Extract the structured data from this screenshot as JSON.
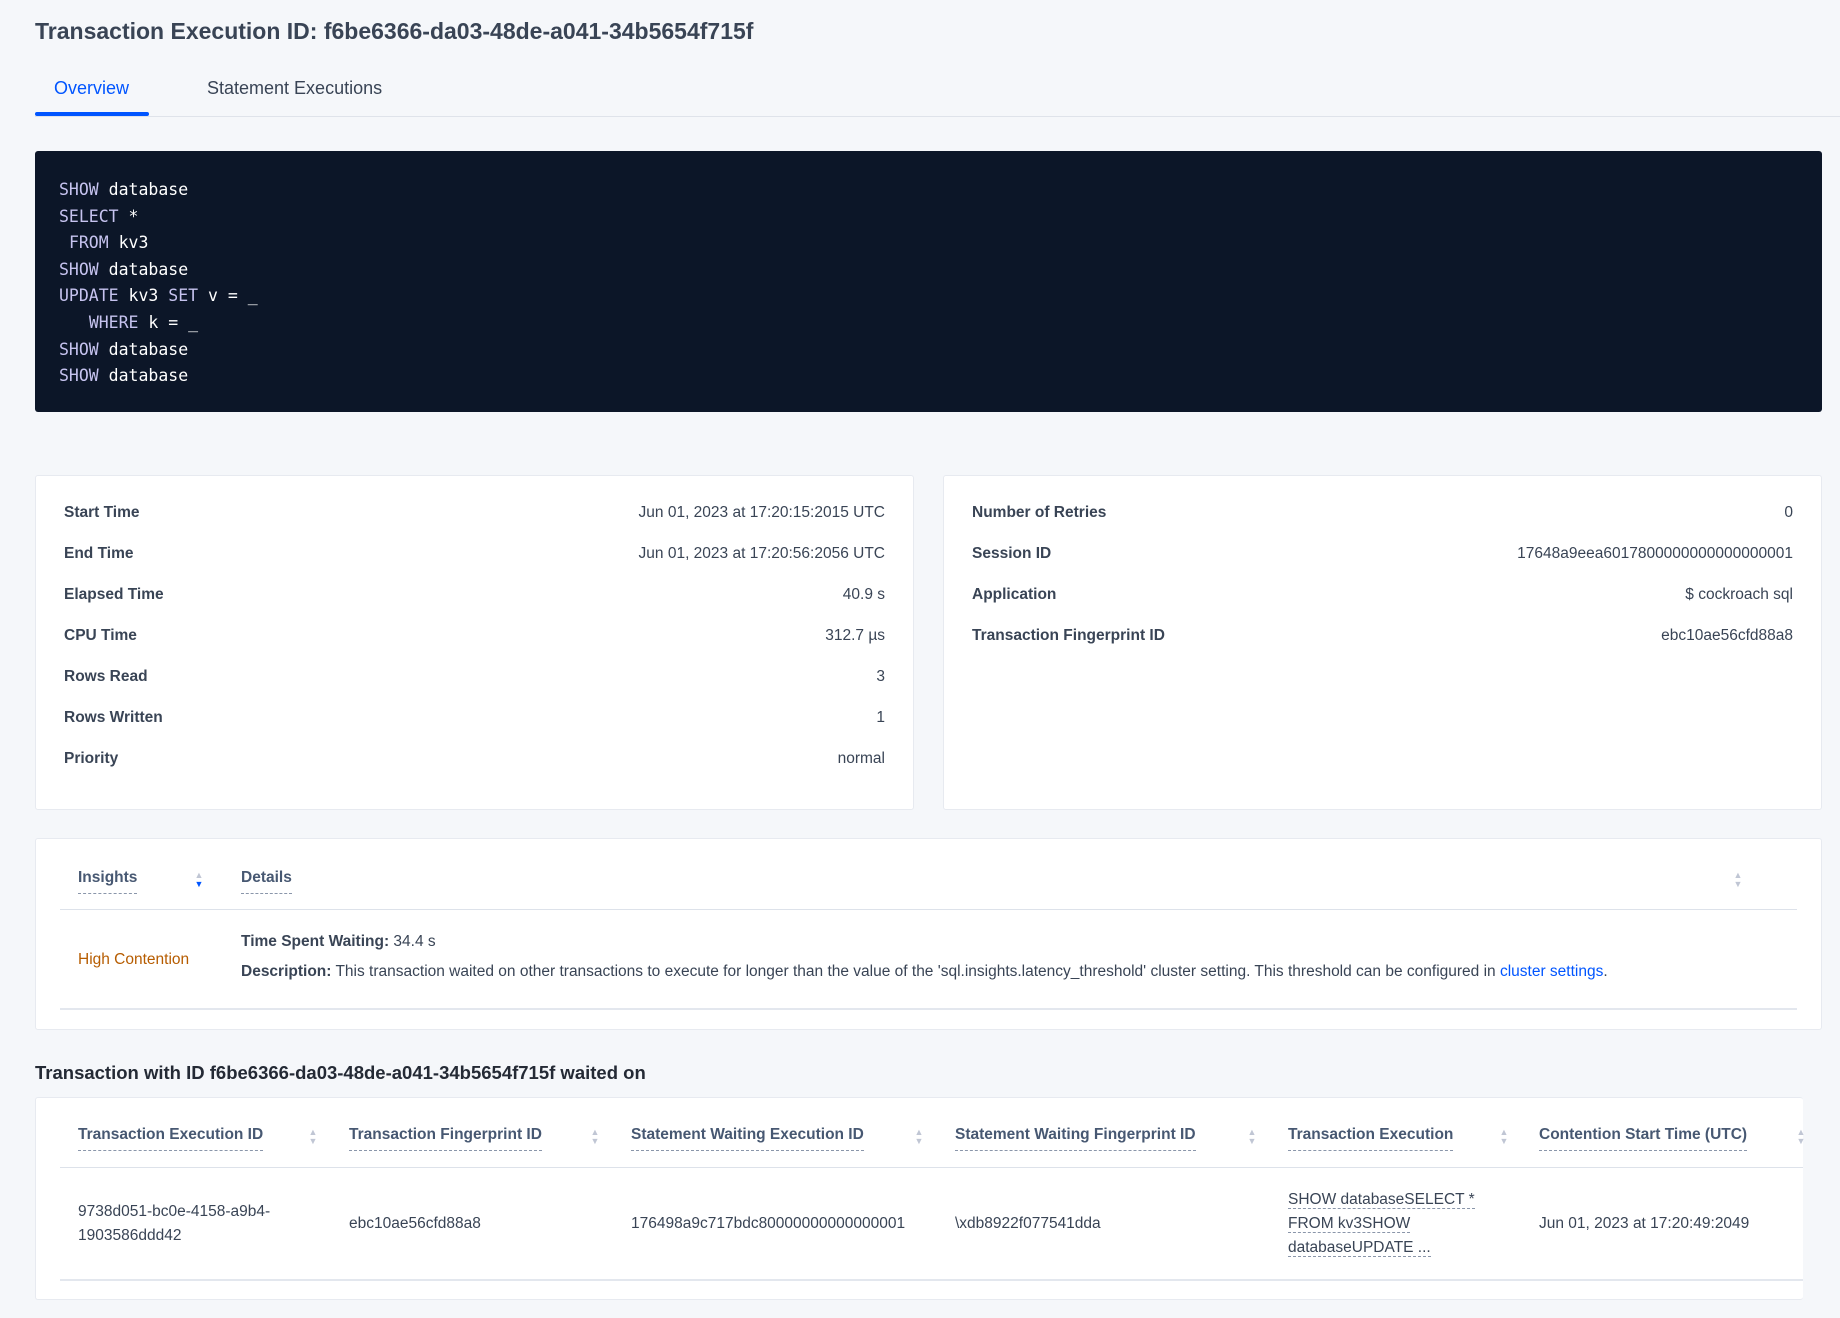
{
  "title": "Transaction Execution ID: f6be6366-da03-48de-a041-34b5654f715f",
  "tabs": [
    {
      "label": "Overview",
      "active": true
    },
    {
      "label": "Statement Executions",
      "active": false
    }
  ],
  "code_lines": [
    [
      {
        "k": "SHOW"
      },
      {
        "t": " database"
      }
    ],
    [
      {
        "k": "SELECT"
      },
      {
        "t": " *"
      }
    ],
    [
      {
        "t": " "
      },
      {
        "k": "FROM"
      },
      {
        "t": " kv3"
      }
    ],
    [
      {
        "k": "SHOW"
      },
      {
        "t": " database"
      }
    ],
    [
      {
        "k": "UPDATE"
      },
      {
        "t": " kv3 "
      },
      {
        "k": "SET"
      },
      {
        "t": " v = _"
      }
    ],
    [
      {
        "t": "   "
      },
      {
        "k": "WHERE"
      },
      {
        "t": " k = _"
      }
    ],
    [
      {
        "k": "SHOW"
      },
      {
        "t": " database"
      }
    ],
    [
      {
        "k": "SHOW"
      },
      {
        "t": " database"
      }
    ]
  ],
  "left_card": [
    {
      "label": "Start Time",
      "value": "Jun 01, 2023 at 17:20:15:2015 UTC"
    },
    {
      "label": "End Time",
      "value": "Jun 01, 2023 at 17:20:56:2056 UTC"
    },
    {
      "label": "Elapsed Time",
      "value": "40.9 s"
    },
    {
      "label": "CPU Time",
      "value": "312.7 µs"
    },
    {
      "label": "Rows Read",
      "value": "3"
    },
    {
      "label": "Rows Written",
      "value": "1"
    },
    {
      "label": "Priority",
      "value": "normal"
    }
  ],
  "right_card": [
    {
      "label": "Number of Retries",
      "value": "0"
    },
    {
      "label": "Session ID",
      "value": "17648a9eea6017800000000000000001"
    },
    {
      "label": "Application",
      "value": "$ cockroach sql"
    },
    {
      "label": "Transaction Fingerprint ID",
      "value": "ebc10ae56cfd88a8",
      "link": true
    }
  ],
  "insights": {
    "headers": {
      "insights": "Insights",
      "details": "Details"
    },
    "insight": "High Contention",
    "insight_color": "#b65c00",
    "time_label": "Time Spent Waiting:",
    "time_value": " 34.4 s",
    "desc_label": "Description:",
    "desc_text": " This transaction waited on other transactions to execute for longer than the value of the 'sql.insights.latency_threshold' cluster setting. This threshold can be configured in ",
    "desc_link": "cluster settings",
    "desc_end": "."
  },
  "waited_title": "Transaction with ID f6be6366-da03-48de-a041-34b5654f715f waited on",
  "waited_table": {
    "columns": [
      "Transaction Execution ID",
      "Transaction Fingerprint ID",
      "Statement Waiting Execution ID",
      "Statement Waiting Fingerprint ID",
      "Transaction Execution",
      "Contention Start Time (UTC)"
    ],
    "rows": [
      {
        "txn_exec_id": [
          "9738d051-bc0e-4158-a9b4-",
          "1903586ddd42"
        ],
        "txn_fp_id": "ebc10ae56cfd88a8",
        "stmt_exec_id": "176498a9c717bdc80000000000000001",
        "stmt_fp_id": "\\xdb8922f077541dda",
        "txn_exec": [
          "SHOW databaseSELECT *",
          "FROM kv3SHOW",
          "databaseUPDATE ..."
        ],
        "start": "Jun 01, 2023 at 17:20:49:2049"
      }
    ]
  },
  "colors": {
    "accent": "#0055ff",
    "code_bg": "#0c1628"
  }
}
